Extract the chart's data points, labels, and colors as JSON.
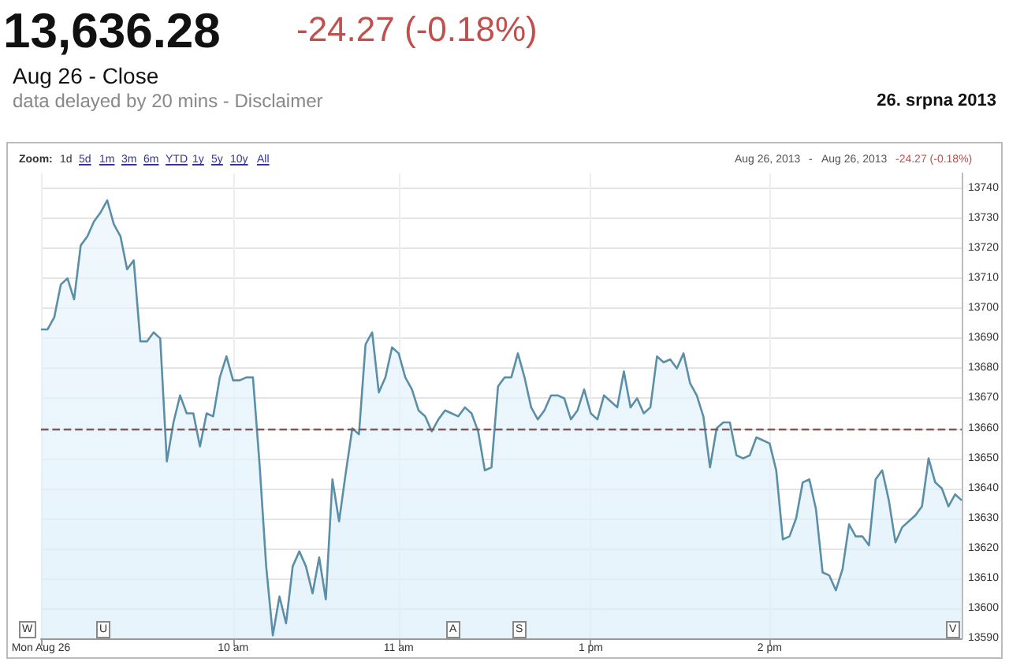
{
  "chart_data": {
    "type": "area",
    "title": "13,636.28",
    "annotations": [
      "-24.27 (-0.18%)",
      "Aug 26 - Close",
      "data delayed by 20 mins - Disclaimer",
      "26. srpna 2013",
      "Zoom:",
      "1d",
      "5d",
      "1m",
      "3m",
      "6m",
      "YTD",
      "1y",
      "5y",
      "10y",
      "All",
      "Aug 26, 2013",
      "-",
      "Aug 26, 2013",
      "-24.27 (-0.18%)",
      "W",
      "U",
      "A",
      "S",
      "V"
    ],
    "categories": [
      "Mon Aug 26",
      null,
      null,
      null,
      null,
      null,
      null,
      null,
      null,
      null,
      null,
      null,
      null,
      null,
      null,
      null,
      null,
      null,
      null,
      null,
      null,
      null,
      null,
      null,
      null,
      null,
      null,
      null,
      null,
      "10 am",
      null,
      null,
      null,
      null,
      null,
      null,
      null,
      null,
      null,
      null,
      null,
      null,
      null,
      null,
      null,
      null,
      null,
      null,
      null,
      null,
      null,
      null,
      null,
      null,
      "11 am",
      null,
      null,
      null,
      null,
      null,
      null,
      null,
      null,
      null,
      null,
      null,
      null,
      null,
      null,
      null,
      null,
      null,
      null,
      null,
      null,
      null,
      null,
      null,
      null,
      null,
      null,
      null,
      null,
      "1 pm",
      null,
      null,
      null,
      null,
      null,
      null,
      null,
      null,
      null,
      null,
      null,
      null,
      null,
      null,
      null,
      null,
      null,
      null,
      null,
      null,
      null,
      null,
      null,
      null,
      null,
      null,
      "2 pm",
      null,
      null,
      null,
      null,
      null,
      null,
      null,
      null,
      null,
      null,
      null,
      null,
      null,
      null,
      null,
      null,
      null,
      null,
      null,
      null,
      null,
      null,
      null,
      null,
      null,
      null,
      null,
      null,
      null
    ],
    "series": [
      {
        "color": "#5b8fa8",
        "values": [
          13693,
          13693,
          13697,
          13708,
          13710,
          13703,
          13721,
          13724,
          13729,
          13732,
          13736,
          13728,
          13724,
          13713,
          13716,
          13689,
          13689,
          13692,
          13690,
          13649,
          13662,
          13671,
          13665,
          13665,
          13654,
          13665,
          13664,
          13677,
          13684,
          13676,
          13676,
          13677,
          13677,
          13648,
          13614,
          13591,
          13604,
          13595,
          13614,
          13619,
          13614,
          13605,
          13617,
          13603,
          13643,
          13629,
          13645,
          13660,
          13658,
          13688,
          13692,
          13672,
          13677,
          13687,
          13685,
          13677,
          13673,
          13666,
          13664,
          13659,
          13663,
          13666,
          13665,
          13664,
          13667,
          13665,
          13659,
          13646,
          13647,
          13674,
          13677,
          13677,
          13685,
          13677,
          13667,
          13663,
          13666,
          13671,
          13671,
          13670,
          13663,
          13666,
          13673,
          13665,
          13663,
          13671,
          13669,
          13667,
          13679,
          13667,
          13670,
          13665,
          13667,
          13684,
          13682,
          13683,
          13680,
          13685,
          13675,
          13671,
          13664,
          13647,
          13660,
          13662,
          13662,
          13651,
          13650,
          13651,
          13657,
          13656,
          13655,
          13646,
          13623,
          13624,
          13630,
          13642,
          13643,
          13633,
          13612,
          13611,
          13606,
          13613,
          13628,
          13624,
          13624,
          13621,
          13643,
          13646,
          13636,
          13622,
          13627,
          13629,
          13631,
          13634,
          13650,
          13642,
          13640,
          13634,
          13638,
          13636
        ]
      }
    ],
    "ylim": [
      13590,
      13745
    ],
    "yticks": [
      13590,
      13600,
      13610,
      13620,
      13630,
      13640,
      13650,
      13660,
      13670,
      13680,
      13690,
      13700,
      13710,
      13720,
      13730,
      13740
    ],
    "ref_lines": [
      {
        "axis": "y",
        "value": 13660,
        "color": "#7a5a5a",
        "line_style": "dashed"
      }
    ],
    "grid": true,
    "marker": "none",
    "line_style": "solid"
  }
}
